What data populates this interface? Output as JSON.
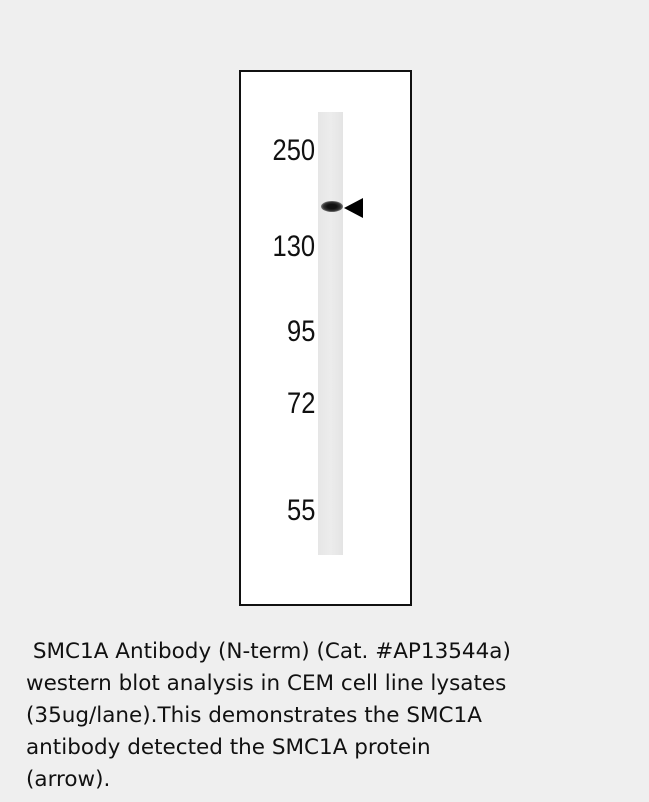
{
  "blot": {
    "markers": [
      "250",
      "130",
      "95",
      "72",
      "55"
    ]
  },
  "caption": {
    "lines": [
      " SMC1A Antibody (N-term) (Cat. #AP13544a)",
      "western blot analysis in CEM cell line lysates",
      "(35ug/lane).This demonstrates the SMC1A",
      "antibody detected the SMC1A protein",
      "(arrow)."
    ]
  }
}
